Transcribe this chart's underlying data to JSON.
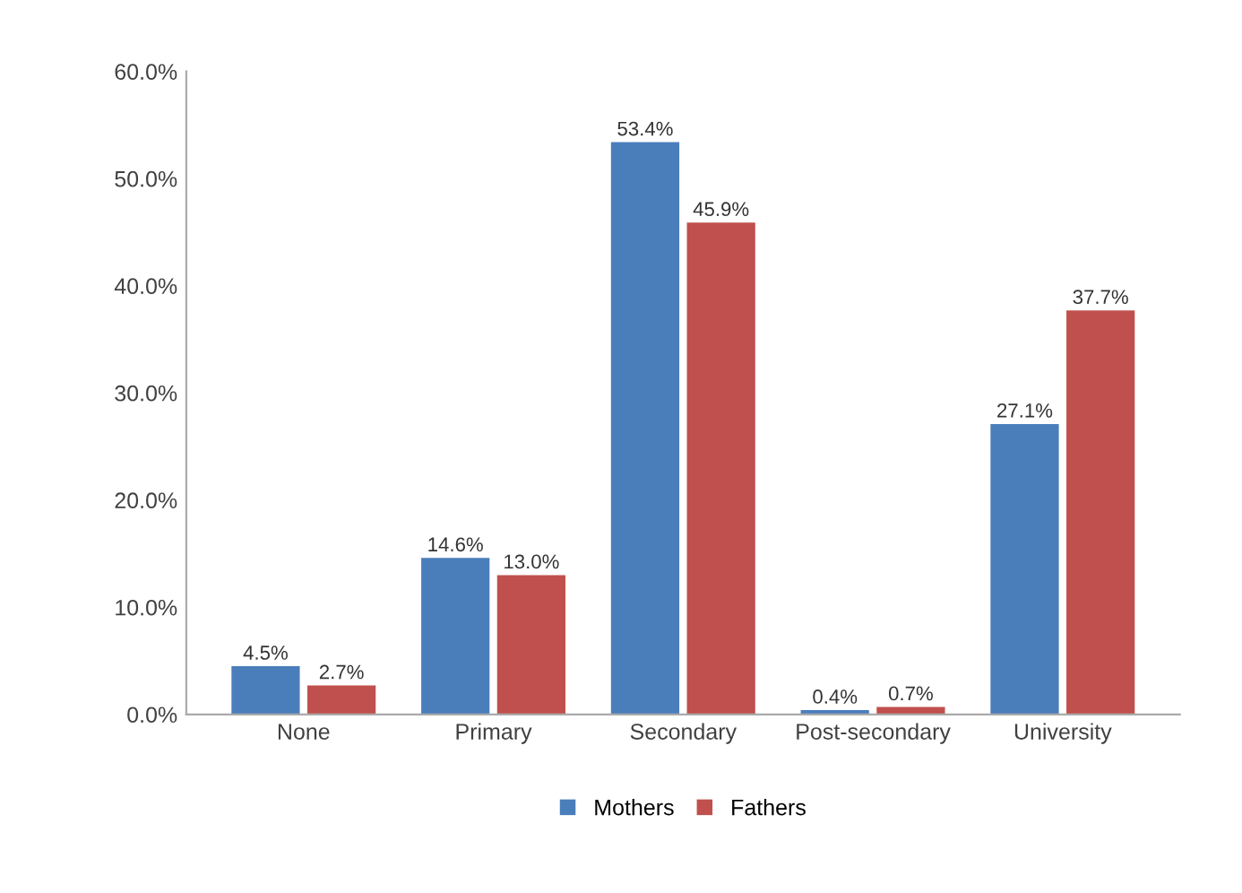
{
  "chart_data": {
    "type": "bar",
    "categories": [
      "None",
      "Primary",
      "Secondary",
      "Post-secondary",
      "University"
    ],
    "series": [
      {
        "name": "Mothers",
        "color": "#4a7ebb",
        "values": [
          4.5,
          14.6,
          53.4,
          0.4,
          27.1
        ]
      },
      {
        "name": "Fathers",
        "color": "#c0504d",
        "values": [
          2.7,
          13.0,
          45.9,
          0.7,
          37.7
        ]
      }
    ],
    "ylim": [
      0,
      60
    ],
    "yticks": [
      {
        "value": 0,
        "label": "0.0%"
      },
      {
        "value": 10,
        "label": "10.0%"
      },
      {
        "value": 20,
        "label": "20.0%"
      },
      {
        "value": 30,
        "label": "30.0%"
      },
      {
        "value": 40,
        "label": "40.0%"
      },
      {
        "value": 50,
        "label": "50.0%"
      },
      {
        "value": 60,
        "label": "60.0%"
      }
    ],
    "value_labels": [
      [
        "4.5%",
        "14.6%",
        "53.4%",
        "0.4%",
        "27.1%"
      ],
      [
        "2.7%",
        "13.0%",
        "45.9%",
        "0.7%",
        "37.7%"
      ]
    ],
    "grid": false,
    "legend": "bottom"
  }
}
